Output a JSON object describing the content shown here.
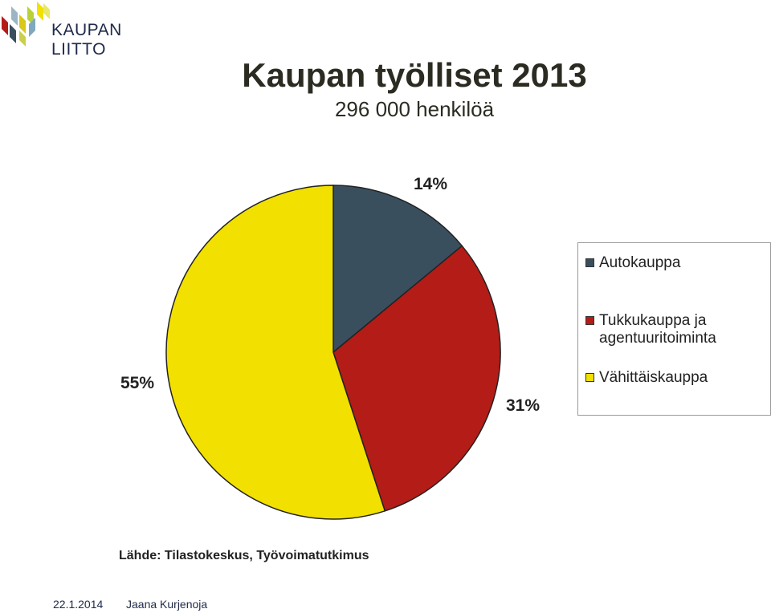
{
  "header": {
    "logo_text": "KAUPAN LIITTO",
    "title": "Kaupan työlliset 2013",
    "subtitle": "296 000 henkilöä"
  },
  "chart_data": {
    "type": "pie",
    "title": "Kaupan työlliset 2013",
    "subtitle": "296 000 henkilöä",
    "slices": [
      {
        "name": "Autokauppa",
        "legend_lines": [
          "Autokauppa"
        ],
        "value": 14,
        "label": "14%",
        "color": "#3a4f5e"
      },
      {
        "name": "Tukkukauppa ja agentuuritoiminta",
        "legend_lines": [
          "Tukkukauppa ja",
          "agentuuritoiminta"
        ],
        "value": 31,
        "label": "31%",
        "color": "#b41c17"
      },
      {
        "name": "Vähittäiskauppa",
        "legend_lines": [
          "Vähittäiskauppa"
        ],
        "value": 55,
        "label": "55%",
        "color": "#f2e000"
      }
    ],
    "start_angle_deg": 0,
    "direction": "clockwise",
    "legend_position": "right"
  },
  "source": "Lähde: Tilastokeskus, Työvoimatutkimus",
  "footer": {
    "date": "22.1.2014",
    "author": "Jaana Kurjenoja"
  }
}
